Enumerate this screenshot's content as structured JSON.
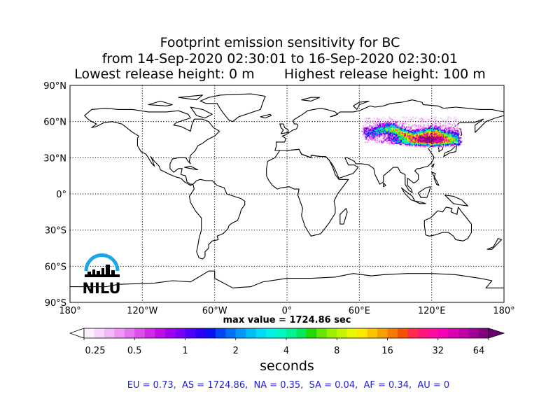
{
  "chart_data": {
    "type": "heatmap",
    "title_lines": [
      "Footprint emission sensitivity for BC",
      "from 14-Sep-2020 02:30:01 to 16-Sep-2020 02:30:01",
      "Lowest release height: 0 m       Highest release height: 100 m"
    ],
    "projection": "equirectangular",
    "xlim": [
      -180,
      180
    ],
    "ylim": [
      -90,
      90
    ],
    "grid": true,
    "x_ticks": [
      {
        "value": -180,
        "label": "180°"
      },
      {
        "value": -120,
        "label": "120°W"
      },
      {
        "value": -60,
        "label": "60°W"
      },
      {
        "value": 0,
        "label": "0°"
      },
      {
        "value": 60,
        "label": "60°E"
      },
      {
        "value": 120,
        "label": "120°E"
      },
      {
        "value": 180,
        "label": "180°"
      }
    ],
    "y_ticks": [
      {
        "value": 90,
        "label": "90°N"
      },
      {
        "value": 60,
        "label": "60°N"
      },
      {
        "value": 30,
        "label": "30°N"
      },
      {
        "value": 0,
        "label": "0°"
      },
      {
        "value": -30,
        "label": "30°S"
      },
      {
        "value": -60,
        "label": "60°S"
      },
      {
        "value": -90,
        "label": "90°S"
      }
    ],
    "max_value_text": "max value = 1724.86 sec",
    "colorbar": {
      "scale": "log2",
      "min": 0.25,
      "max": 64,
      "ticks": [
        {
          "value": 0.25,
          "label": "0.25"
        },
        {
          "value": 0.5,
          "label": "0.5"
        },
        {
          "value": 1,
          "label": "1"
        },
        {
          "value": 2,
          "label": "2"
        },
        {
          "value": 4,
          "label": "4"
        },
        {
          "value": 8,
          "label": "8"
        },
        {
          "value": 16,
          "label": "16"
        },
        {
          "value": 32,
          "label": "32"
        },
        {
          "value": 64,
          "label": "64"
        }
      ],
      "label": "seconds",
      "colors": [
        "#fdeffd",
        "#f9d5fb",
        "#f4b8f8",
        "#ee96f4",
        "#e674f0",
        "#dc4feb",
        "#cf2ae6",
        "#be0ee8",
        "#a000f0",
        "#7a00f5",
        "#5000f8",
        "#2a00f8",
        "#0a10f0",
        "#0045f5",
        "#0070f8",
        "#0098fb",
        "#00bcfb",
        "#00dcf6",
        "#00f2e4",
        "#00f8c0",
        "#00f492",
        "#00e85c",
        "#22d800",
        "#66e600",
        "#9af000",
        "#c6f500",
        "#e8f800",
        "#fde800",
        "#fbc400",
        "#f8a000",
        "#f57b00",
        "#f55200",
        "#ff2a50",
        "#ff1878",
        "#ff0a9e",
        "#f500b4",
        "#dc00b4",
        "#c000a6",
        "#a00096",
        "#820080"
      ],
      "under_color": "#ffffff",
      "over_color": "#6a0070"
    },
    "series": [
      {
        "region": "Siberia / Central Asia / Northern China / Mongolia plume",
        "lon_range": [
          60,
          145
        ],
        "lat_range": [
          38,
          67
        ],
        "peak_lon": 118,
        "peak_lat": 45,
        "max_value": 1724.86
      }
    ],
    "regional_sums": {
      "text": "EU = 0.73,  AS = 1724.86,  NA = 0.35,  SA = 0.04,  AF = 0.34,  AU = 0",
      "EU": 0.73,
      "AS": 1724.86,
      "NA": 0.35,
      "SA": 0.04,
      "AF": 0.34,
      "AU": 0
    }
  },
  "logo": {
    "text": "NILU",
    "color_arc": "#1aa6e8",
    "color_text": "#000000"
  }
}
